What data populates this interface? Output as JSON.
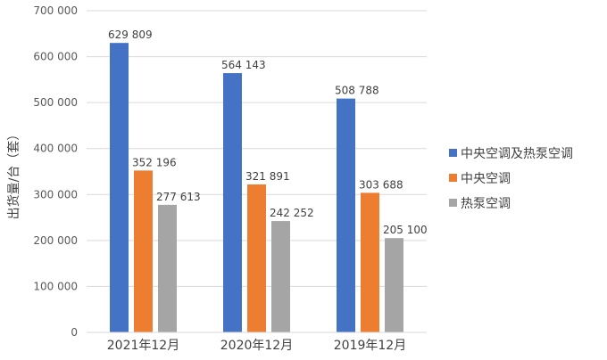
{
  "chart_data": {
    "type": "bar",
    "ylabel": "出货量/台（套）",
    "ylim": [
      0,
      700000
    ],
    "yticks": [
      0,
      100000,
      200000,
      300000,
      400000,
      500000,
      600000,
      700000
    ],
    "ytick_labels": [
      "0",
      "100 000",
      "200 000",
      "300 000",
      "400 000",
      "500 000",
      "600 000",
      "700 000"
    ],
    "categories": [
      "2021年12月",
      "2020年12月",
      "2019年12月"
    ],
    "series": [
      {
        "name": "中央空调及热泵空调",
        "color": "#4472c4",
        "values": [
          629809,
          564143,
          508788
        ],
        "labels": [
          "629 809",
          "564 143",
          "508 788"
        ]
      },
      {
        "name": "中央空调",
        "color": "#ed7d31",
        "values": [
          352196,
          321891,
          303688
        ],
        "labels": [
          "352 196",
          "321 891",
          "303 688"
        ]
      },
      {
        "name": "热泵空调",
        "color": "#a5a5a5",
        "values": [
          277613,
          242252,
          205100
        ],
        "labels": [
          "277 613",
          "242 252",
          "205 100"
        ]
      }
    ],
    "grid": true,
    "legend_position": "right"
  }
}
